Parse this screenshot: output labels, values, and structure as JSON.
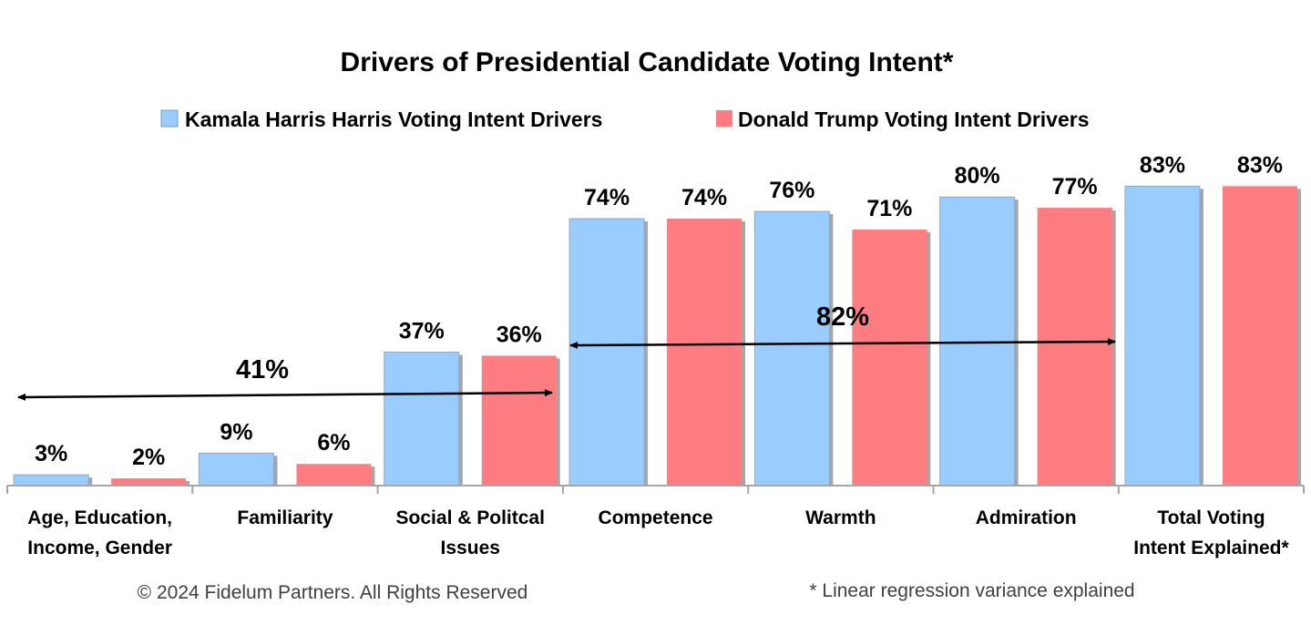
{
  "chart_data": {
    "type": "bar",
    "title": "Drivers of Presidential Candidate Voting Intent*",
    "categories": [
      [
        "Age, Education,",
        "Income, Gender"
      ],
      [
        "Familiarity"
      ],
      [
        "Social & Politcal",
        "Issues"
      ],
      [
        "Competence"
      ],
      [
        "Warmth"
      ],
      [
        "Admiration"
      ],
      [
        "Total Voting",
        "Intent Explained*"
      ]
    ],
    "series": [
      {
        "name": "Kamala Harris Harris Voting Intent Drivers",
        "color": "#99CCFF",
        "values": [
          3,
          9,
          37,
          74,
          76,
          80,
          83
        ],
        "labels": [
          "3%",
          "9%",
          "37%",
          "74%",
          "76%",
          "80%",
          "83%"
        ]
      },
      {
        "name": "Donald Trump Voting Intent Drivers",
        "color": "#FF7C80",
        "values": [
          2,
          6,
          36,
          74,
          71,
          77,
          83
        ],
        "labels": [
          "2%",
          "6%",
          "36%",
          "74%",
          "71%",
          "77%",
          "83%"
        ]
      }
    ],
    "ylim": [
      0,
      100
    ],
    "grid": false,
    "legend_position": "top",
    "annotations": [
      {
        "label": "41%",
        "span_categories": [
          0,
          2
        ],
        "value": 41
      },
      {
        "label": "82%",
        "span_categories": [
          3,
          5
        ],
        "value": 82
      }
    ]
  },
  "footer": {
    "copyright": "© 2024 Fidelum Partners. All Rights Reserved",
    "note": "* Linear regression variance explained"
  }
}
